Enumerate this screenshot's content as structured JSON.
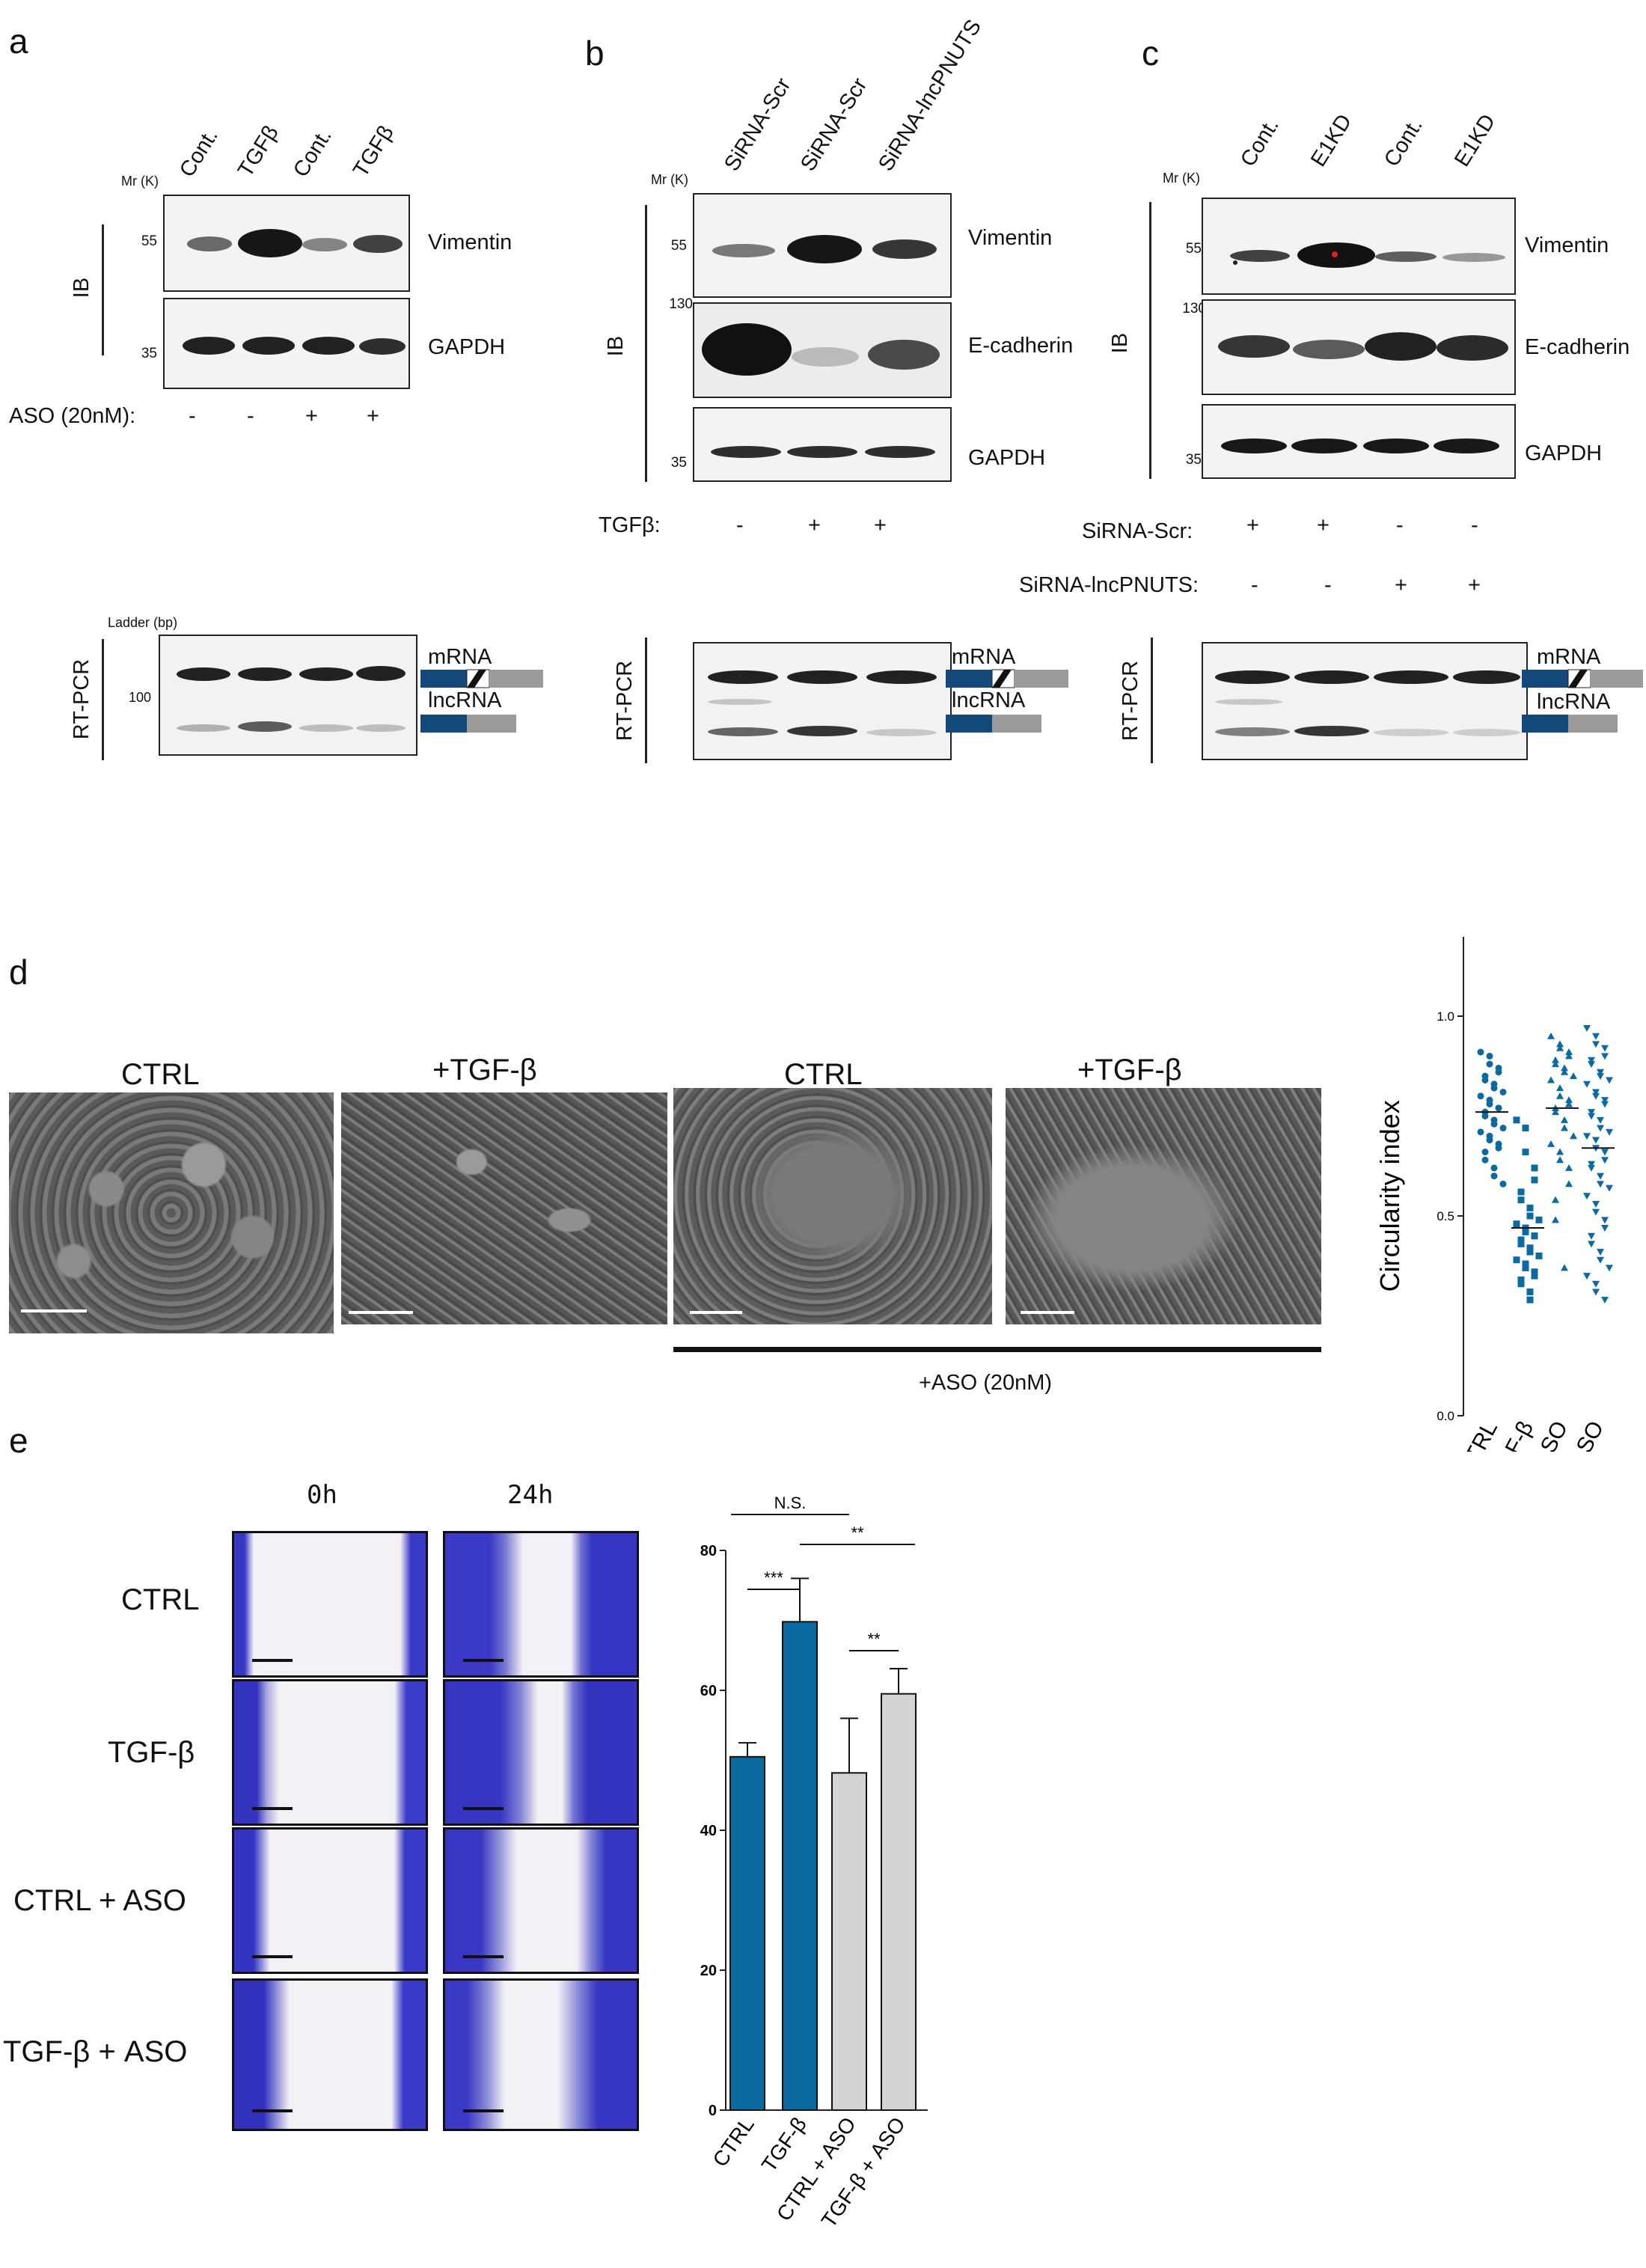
{
  "panel_a": {
    "letter": "a",
    "mr_label": "Mr (K)",
    "lanes": [
      "Cont.",
      "TGFβ",
      "Cont.",
      "TGFβ"
    ],
    "mw_vimentin": "55",
    "mw_gapdh": "35",
    "ib_label": "IB",
    "vimentin_label": "Vimentin",
    "gapdh_label": "GAPDH",
    "aso_label": "ASO (20nM):",
    "aso_signs": [
      "-",
      "-",
      "+",
      "+"
    ],
    "ladder_label": "Ladder (bp)",
    "ladder_mark": "100",
    "rtpcr_label": "RT-PCR",
    "mrna_label": "mRNA",
    "lncrna_label": "lncRNA"
  },
  "panel_b": {
    "letter": "b",
    "mr_label": "Mr (K)",
    "lanes": [
      "SiRNA-Scr",
      "SiRNA-Scr",
      "SiRNA-lncPNUTS"
    ],
    "mw_vimentin": "55",
    "mw_ecad": "130",
    "mw_gapdh": "35",
    "ib_label": "IB",
    "vimentin_label": "Vimentin",
    "ecad_label": "E-cadherin",
    "gapdh_label": "GAPDH",
    "tgf_label": "TGFβ:",
    "tgf_signs": [
      "-",
      "+",
      "+"
    ],
    "rtpcr_label": "RT-PCR",
    "mrna_label": "mRNA",
    "lncrna_label": "lncRNA"
  },
  "panel_c": {
    "letter": "c",
    "mr_label": "Mr (K)",
    "lanes": [
      "Cont.",
      "E1KD",
      "Cont.",
      "E1KD"
    ],
    "mw_vimentin": "55",
    "mw_ecad": "130",
    "mw_gapdh": "35",
    "ib_label": "IB",
    "vimentin_label": "Vimentin",
    "ecad_label": "E-cadherin",
    "gapdh_label": "GAPDH",
    "scr_label": "SiRNA-Scr:",
    "scr_signs": [
      "+",
      "+",
      "-",
      "-"
    ],
    "pnuts_label": "SiRNA-lncPNUTS:",
    "pnuts_signs": [
      "-",
      "-",
      "+",
      "+"
    ],
    "rtpcr_label": "RT-PCR",
    "mrna_label": "mRNA",
    "lncrna_label": "lncRNA"
  },
  "panel_d": {
    "letter": "d",
    "image_titles": [
      "CTRL",
      "+TGF-β",
      "CTRL",
      "+TGF-β"
    ],
    "aso_bar_label": "+ASO (20nM)"
  },
  "panel_e": {
    "letter": "e",
    "time_labels": [
      "0h",
      "24h"
    ],
    "row_labels": [
      "CTRL",
      "TGF-β",
      "CTRL + ASO",
      "TGF-β + ASO"
    ]
  },
  "colors": {
    "blue": "#0b6aa0",
    "gray_bar": "#d4d4d4",
    "navy": "#12487a",
    "stain": "#3a3ac8"
  },
  "chart_data": [
    {
      "type": "scatter",
      "ylabel": "Circularity index",
      "xlabel": "",
      "ylim": [
        0.0,
        1.0
      ],
      "yticks": [
        "0.0",
        "0.5",
        "1.0"
      ],
      "categories": [
        "CTRL",
        "TGF-β",
        "CTRL + ASO",
        "TGF-β + ASO"
      ],
      "markers": [
        "circle",
        "square",
        "triangle-up",
        "triangle-down"
      ],
      "means": [
        0.76,
        0.47,
        0.77,
        0.67
      ],
      "series": [
        {
          "values": [
            0.91,
            0.9,
            0.88,
            0.87,
            0.86,
            0.85,
            0.84,
            0.83,
            0.82,
            0.81,
            0.8,
            0.79,
            0.78,
            0.77,
            0.77,
            0.76,
            0.75,
            0.74,
            0.73,
            0.72,
            0.71,
            0.7,
            0.69,
            0.68,
            0.67,
            0.66,
            0.64,
            0.62,
            0.6,
            0.58
          ]
        },
        {
          "values": [
            0.74,
            0.72,
            0.66,
            0.62,
            0.59,
            0.56,
            0.54,
            0.52,
            0.5,
            0.49,
            0.48,
            0.47,
            0.46,
            0.45,
            0.45,
            0.44,
            0.43,
            0.42,
            0.41,
            0.4,
            0.39,
            0.38,
            0.37,
            0.36,
            0.35,
            0.34,
            0.33,
            0.31,
            0.29
          ]
        },
        {
          "values": [
            0.95,
            0.93,
            0.92,
            0.91,
            0.9,
            0.89,
            0.88,
            0.87,
            0.86,
            0.85,
            0.84,
            0.82,
            0.8,
            0.79,
            0.78,
            0.77,
            0.76,
            0.74,
            0.72,
            0.7,
            0.68,
            0.66,
            0.64,
            0.62,
            0.58,
            0.54,
            0.49,
            0.37
          ]
        },
        {
          "values": [
            0.97,
            0.95,
            0.93,
            0.92,
            0.9,
            0.89,
            0.88,
            0.86,
            0.85,
            0.84,
            0.83,
            0.81,
            0.8,
            0.79,
            0.78,
            0.76,
            0.75,
            0.74,
            0.72,
            0.71,
            0.7,
            0.69,
            0.67,
            0.66,
            0.64,
            0.63,
            0.62,
            0.6,
            0.58,
            0.57,
            0.55,
            0.53,
            0.51,
            0.49,
            0.47,
            0.45,
            0.43,
            0.41,
            0.39,
            0.37,
            0.35,
            0.33,
            0.31,
            0.29
          ]
        }
      ]
    },
    {
      "type": "bar",
      "categories": [
        "CTRL",
        "TGF-β",
        "CTRL + ASO",
        "TGF-β + ASO"
      ],
      "values": [
        50.5,
        69.8,
        48.2,
        59.5
      ],
      "errors": [
        2.0,
        6.2,
        7.8,
        3.6
      ],
      "ylim": [
        0,
        80
      ],
      "yticks": [
        "0",
        "20",
        "40",
        "60",
        "80"
      ],
      "xlabel": "",
      "ylabel": "",
      "significance": [
        "N.S.",
        "**",
        "***",
        "**"
      ]
    }
  ]
}
